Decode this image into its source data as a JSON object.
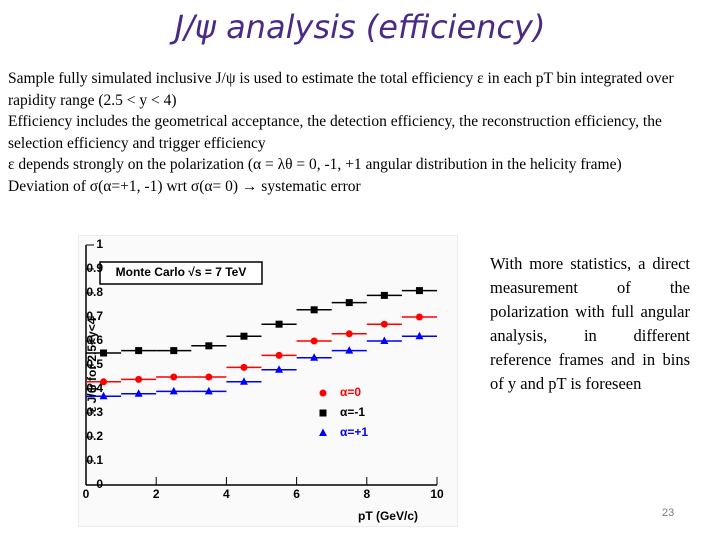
{
  "title": "J/ψ analysis (efficiency)",
  "paragraphs": [
    "Sample fully simulated inclusive J/ψ is used to estimate the total efficiency ε in each pT bin integrated over rapidity range (2.5 < y < 4)",
    "Efficiency includes the geometrical acceptance, the detection efficiency, the reconstruction efficiency, the selection efficiency and trigger efficiency",
    "ε depends strongly on the polarization  (α = λθ = 0, -1, +1 angular distribution in the helicity frame)",
    "Deviation of  σ(α=+1, -1) wrt σ(α= 0) → systematic error"
  ],
  "side_text": "With more statistics, a direct measurement of the polarization with full angular analysis, in different reference frames and in bins of y and pT is foreseen",
  "page_number": "23",
  "chart_data": {
    "type": "scatter",
    "annotation": "Monte Carlo √s = 7 TeV",
    "x_label": "pT (GeV/c)",
    "y_label": "ε J/ψ for 2.5<y<4",
    "bins": [
      0,
      1,
      2,
      3,
      4,
      5,
      6,
      7,
      8,
      9,
      10
    ],
    "xlim": [
      0,
      10
    ],
    "xticks": [
      0,
      2,
      4,
      6,
      8,
      10
    ],
    "ylim": [
      0,
      1
    ],
    "yticks": [
      0,
      0.1,
      0.2,
      0.3,
      0.4,
      0.5,
      0.6,
      0.7,
      0.8,
      0.9,
      1
    ],
    "legend": "lower right",
    "series": [
      {
        "name": "α=0",
        "color": "#ff0000",
        "marker": "circle",
        "values": [
          0.43,
          0.44,
          0.45,
          0.45,
          0.49,
          0.54,
          0.6,
          0.63,
          0.67,
          0.7
        ]
      },
      {
        "name": "α=-1",
        "color": "#000000",
        "marker": "square",
        "values": [
          0.55,
          0.56,
          0.56,
          0.58,
          0.62,
          0.67,
          0.73,
          0.76,
          0.79,
          0.81
        ]
      },
      {
        "name": "α=+1",
        "color": "#0000ff",
        "marker": "triangle",
        "values": [
          0.37,
          0.38,
          0.39,
          0.39,
          0.43,
          0.48,
          0.53,
          0.56,
          0.6,
          0.62
        ]
      }
    ]
  }
}
